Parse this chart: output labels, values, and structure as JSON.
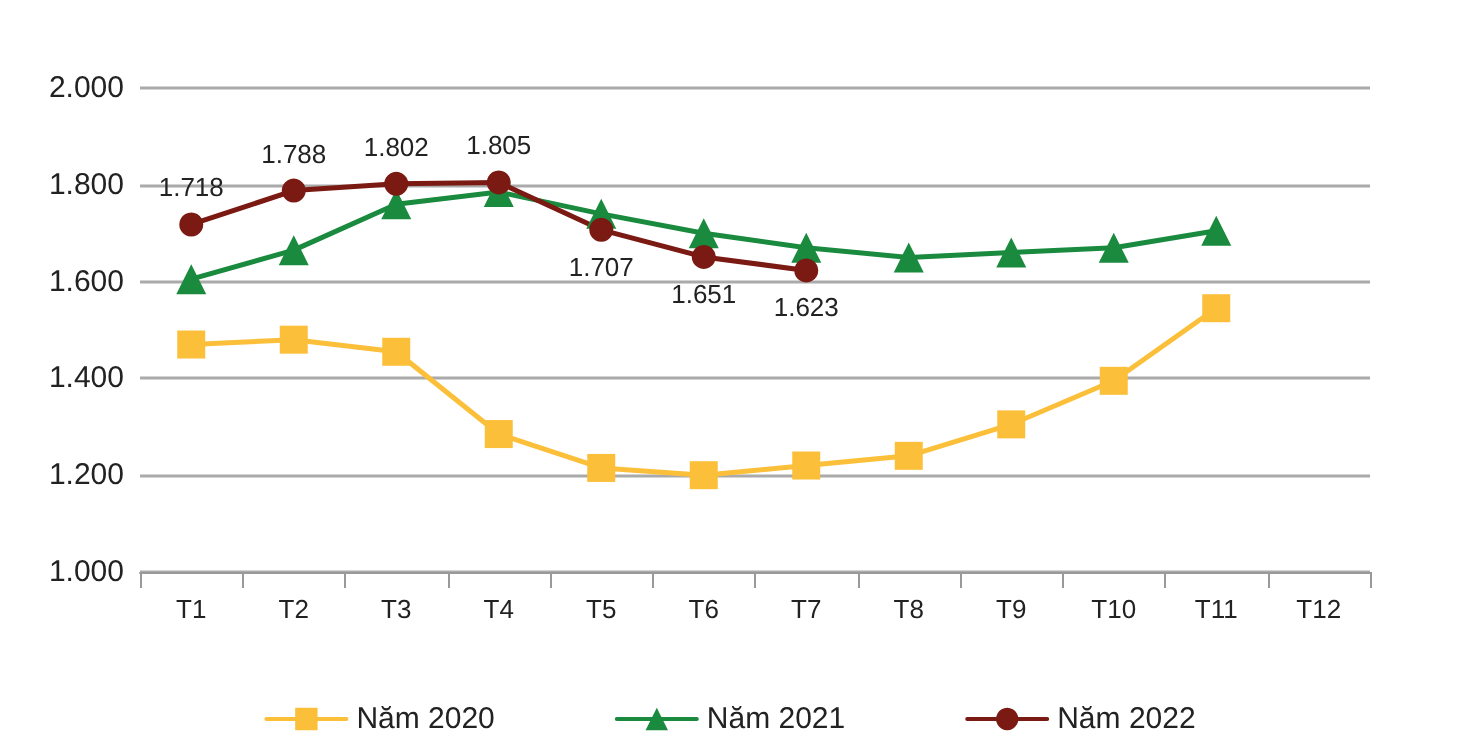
{
  "chart_data": {
    "type": "line",
    "categories": [
      "T1",
      "T2",
      "T3",
      "T4",
      "T5",
      "T6",
      "T7",
      "T8",
      "T9",
      "T10",
      "T11",
      "T12"
    ],
    "series": [
      {
        "name": "Năm 2020",
        "color": "#fbbf3a",
        "marker": "square",
        "values": [
          1470,
          1480,
          1455,
          1285,
          1215,
          1200,
          1220,
          1240,
          1305,
          1395,
          1545,
          null
        ]
      },
      {
        "name": "Năm 2021",
        "color": "#1a8a3e",
        "marker": "triangle",
        "values": [
          1605,
          1665,
          1760,
          1785,
          1740,
          1700,
          1670,
          1650,
          1660,
          1670,
          1705,
          null
        ]
      },
      {
        "name": "Năm 2022",
        "color": "#7b1a12",
        "marker": "circle",
        "value_labels": [
          "1.718",
          "1.788",
          "1.802",
          "1.805",
          "1.707",
          "1.651",
          "1.623",
          null,
          null,
          null,
          null,
          null
        ],
        "values": [
          1718,
          1788,
          1802,
          1805,
          1707,
          1651,
          1623,
          null,
          null,
          null,
          null,
          null
        ]
      }
    ],
    "ylim": [
      1000,
      2000
    ],
    "yticks": [
      {
        "value": 1000,
        "label": "1.000"
      },
      {
        "value": 1200,
        "label": "1.200"
      },
      {
        "value": 1400,
        "label": "1.400"
      },
      {
        "value": 1600,
        "label": "1.600"
      },
      {
        "value": 1800,
        "label": "1.800"
      },
      {
        "value": 2000,
        "label": "2.000"
      }
    ],
    "grid": "y",
    "legend": "bottom",
    "line_style": "solid"
  }
}
